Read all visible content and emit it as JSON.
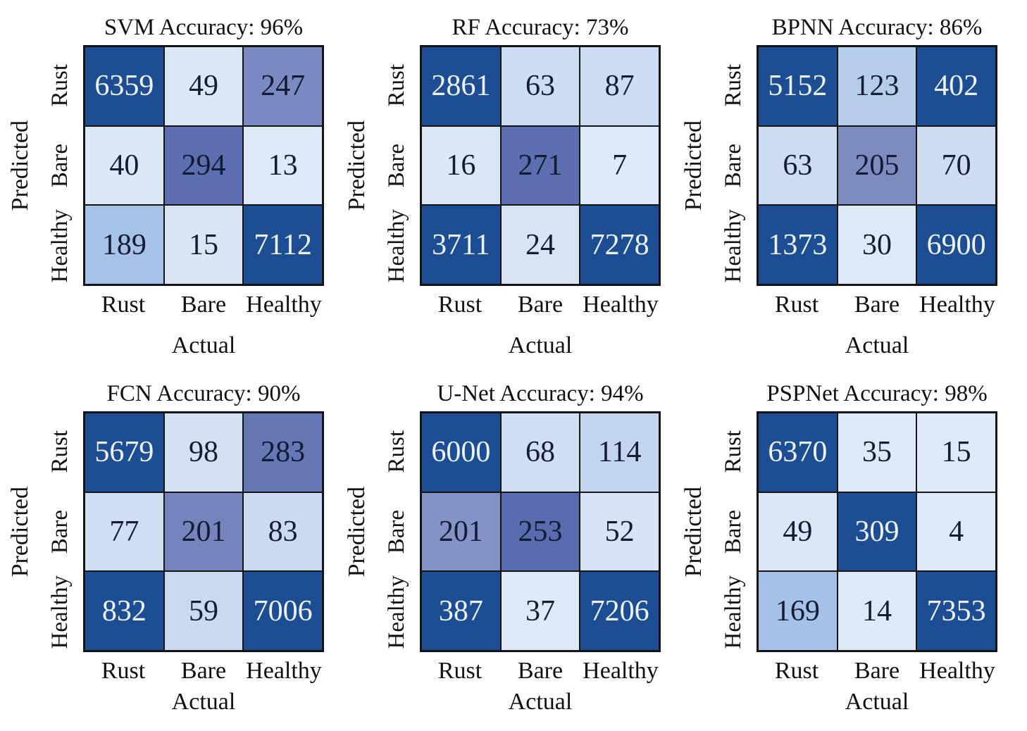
{
  "figure": {
    "ylabel": "Predicted",
    "xlabel": "Actual"
  },
  "chart_data": [
    {
      "type": "heatmap",
      "model": "SVM",
      "accuracy": "96%",
      "title": "SVM Accuracy: 96%",
      "rows": [
        "Rust",
        "Bare",
        "Healthy"
      ],
      "cols": [
        "Rust",
        "Bare",
        "Healthy"
      ],
      "values": [
        [
          6359,
          49,
          247
        ],
        [
          40,
          294,
          13
        ],
        [
          189,
          15,
          7112
        ]
      ],
      "cell_colors": [
        [
          "#1d4d92",
          "#dbe7f6",
          "#7b8ac3"
        ],
        [
          "#dbe7f6",
          "#5d6fb0",
          "#dde9f7"
        ],
        [
          "#a6c2e6",
          "#d9e5f5",
          "#1d4d92"
        ]
      ],
      "text_colors": [
        [
          "#eef3fb",
          "#131c33",
          "#131c33"
        ],
        [
          "#131c33",
          "#131c33",
          "#131c33"
        ],
        [
          "#131c33",
          "#131c33",
          "#eef3fb"
        ]
      ]
    },
    {
      "type": "heatmap",
      "model": "RF",
      "accuracy": "73%",
      "title": "RF Accuracy: 73%",
      "rows": [
        "Rust",
        "Bare",
        "Healthy"
      ],
      "cols": [
        "Rust",
        "Bare",
        "Healthy"
      ],
      "values": [
        [
          2861,
          63,
          87
        ],
        [
          16,
          271,
          7
        ],
        [
          3711,
          24,
          7278
        ]
      ],
      "cell_colors": [
        [
          "#1d4d92",
          "#ccdcf2",
          "#ccdcf2"
        ],
        [
          "#dbe7f6",
          "#5d6fb0",
          "#dee9f7"
        ],
        [
          "#1d4d92",
          "#d8e4f4",
          "#1d4d92"
        ]
      ],
      "text_colors": [
        [
          "#eef3fb",
          "#131c33",
          "#131c33"
        ],
        [
          "#131c33",
          "#131c33",
          "#131c33"
        ],
        [
          "#eef3fb",
          "#131c33",
          "#eef3fb"
        ]
      ]
    },
    {
      "type": "heatmap",
      "model": "BPNN",
      "accuracy": "86%",
      "title": "BPNN Accuracy: 86%",
      "rows": [
        "Rust",
        "Bare",
        "Healthy"
      ],
      "cols": [
        "Rust",
        "Bare",
        "Healthy"
      ],
      "values": [
        [
          5152,
          123,
          402
        ],
        [
          63,
          205,
          70
        ],
        [
          1373,
          30,
          6900
        ]
      ],
      "cell_colors": [
        [
          "#1d4d92",
          "#b6cdea",
          "#1d4d92"
        ],
        [
          "#cddcf1",
          "#7d8bbf",
          "#cddcf1"
        ],
        [
          "#1d4d92",
          "#dde9f7",
          "#1d4d92"
        ]
      ],
      "text_colors": [
        [
          "#eef3fb",
          "#131c33",
          "#eef3fb"
        ],
        [
          "#131c33",
          "#131c33",
          "#131c33"
        ],
        [
          "#eef3fb",
          "#131c33",
          "#eef3fb"
        ]
      ]
    },
    {
      "type": "heatmap",
      "model": "FCN",
      "accuracy": "90%",
      "title": "FCN Accuracy: 90%",
      "rows": [
        "Rust",
        "Bare",
        "Healthy"
      ],
      "cols": [
        "Rust",
        "Bare",
        "Healthy"
      ],
      "values": [
        [
          5679,
          98,
          283
        ],
        [
          77,
          201,
          83
        ],
        [
          832,
          59,
          7006
        ]
      ],
      "cell_colors": [
        [
          "#1d4d92",
          "#d4e1f3",
          "#6577b4"
        ],
        [
          "#cfdef2",
          "#7584bc",
          "#cbdaf0"
        ],
        [
          "#1d4d92",
          "#c9d9f0",
          "#1d4d92"
        ]
      ],
      "text_colors": [
        [
          "#eef3fb",
          "#131c33",
          "#131c33"
        ],
        [
          "#131c33",
          "#131c33",
          "#131c33"
        ],
        [
          "#eef3fb",
          "#131c33",
          "#eef3fb"
        ]
      ]
    },
    {
      "type": "heatmap",
      "model": "U-Net",
      "accuracy": "94%",
      "title": "U-Net Accuracy: 94%",
      "rows": [
        "Rust",
        "Bare",
        "Healthy"
      ],
      "cols": [
        "Rust",
        "Bare",
        "Healthy"
      ],
      "values": [
        [
          6000,
          68,
          114
        ],
        [
          201,
          253,
          52
        ],
        [
          387,
          37,
          7206
        ]
      ],
      "cell_colors": [
        [
          "#1d4d92",
          "#cfdef2",
          "#c3d5ee"
        ],
        [
          "#8393c6",
          "#5a6cb0",
          "#d7e3f4"
        ],
        [
          "#1d4d92",
          "#dde9f7",
          "#1d4d92"
        ]
      ],
      "text_colors": [
        [
          "#eef3fb",
          "#131c33",
          "#131c33"
        ],
        [
          "#131c33",
          "#131c33",
          "#131c33"
        ],
        [
          "#eef3fb",
          "#131c33",
          "#eef3fb"
        ]
      ]
    },
    {
      "type": "heatmap",
      "model": "PSPNet",
      "accuracy": "98%",
      "title": "PSPNet Accuracy: 98%",
      "rows": [
        "Rust",
        "Bare",
        "Healthy"
      ],
      "cols": [
        "Rust",
        "Bare",
        "Healthy"
      ],
      "values": [
        [
          6370,
          35,
          15
        ],
        [
          49,
          309,
          4
        ],
        [
          169,
          14,
          7353
        ]
      ],
      "cell_colors": [
        [
          "#1d4d92",
          "#dde9f7",
          "#dee9f7"
        ],
        [
          "#dbe7f6",
          "#1d4d92",
          "#dee9f7"
        ],
        [
          "#a6c1e7",
          "#dde9f7",
          "#1d4d92"
        ]
      ],
      "text_colors": [
        [
          "#eef3fb",
          "#131c33",
          "#131c33"
        ],
        [
          "#131c33",
          "#eef3fb",
          "#131c33"
        ],
        [
          "#131c33",
          "#131c33",
          "#eef3fb"
        ]
      ]
    }
  ]
}
